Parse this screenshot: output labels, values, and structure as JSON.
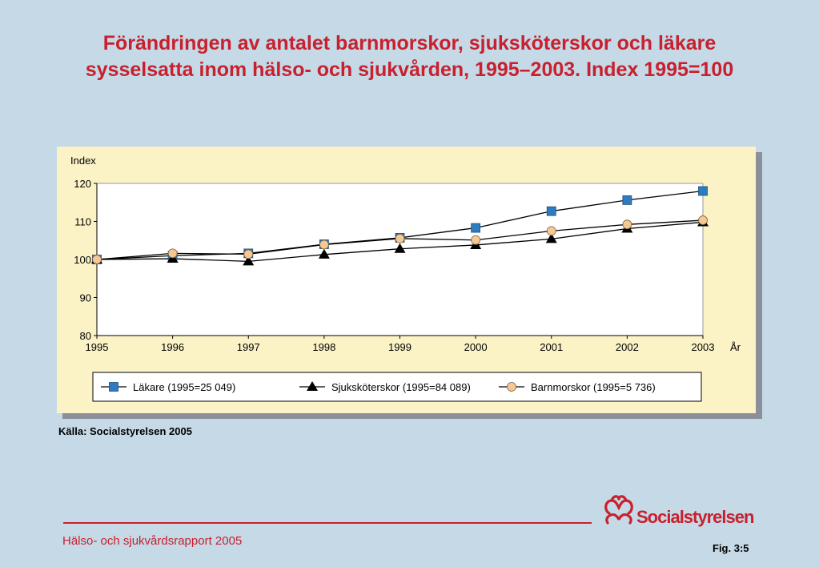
{
  "slide": {
    "title_line1": "Förändringen av antalet barnmorskor, sjuksköterskor och läkare",
    "title_line2": "sysselsatta inom hälso- och sjukvården, 1995–2003. Index 1995=100",
    "source": "Källa: Socialstyrelsen 2005",
    "footer": "Hälso- och sjukvårdsrapport 2005",
    "fig": "Fig. 3:5",
    "logo_text": "Socialstyrelsen",
    "logo_icon": "socialstyrelsen-emblem"
  },
  "colors": {
    "background": "#c5d9e6",
    "accent_red": "#c8202e",
    "panel": "#fbf3c6",
    "lakare": "#2e7bc0",
    "sjukskoterskor": "#000000",
    "barnmorskor": "#f6c993"
  },
  "chart_data": {
    "type": "line",
    "ylabel": "Index",
    "xlabel": "År",
    "x": [
      1995,
      1996,
      1997,
      1998,
      1999,
      2000,
      2001,
      2002,
      2003
    ],
    "ylim": [
      80,
      120
    ],
    "yticks": [
      80,
      90,
      100,
      110,
      120
    ],
    "grid": false,
    "legend_position": "bottom",
    "series": [
      {
        "name": "Läkare (1995=25 049)",
        "marker": "square",
        "values": [
          100,
          101,
          101.6,
          104,
          105.7,
          108.3,
          112.7,
          115.6,
          118
        ]
      },
      {
        "name": "Sjuksköterskor (1995=84 089)",
        "marker": "triangle",
        "values": [
          100,
          100.2,
          99.5,
          101.3,
          102.8,
          103.8,
          105.4,
          108.1,
          109.8
        ]
      },
      {
        "name": "Barnmorskor (1995=5 736)",
        "marker": "circle",
        "values": [
          100,
          101.6,
          101.4,
          103.9,
          105.5,
          105.1,
          107.5,
          109.2,
          110.3
        ]
      }
    ]
  }
}
